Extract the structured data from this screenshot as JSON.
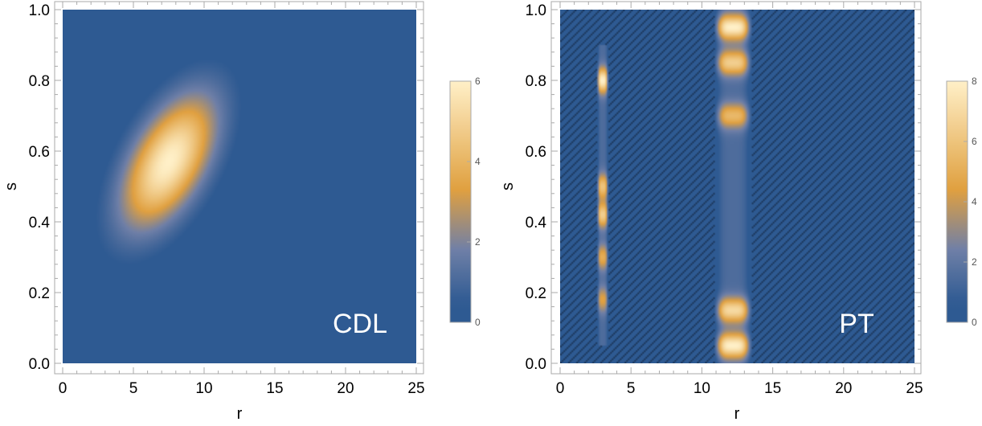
{
  "colors": {
    "low": "#2e5a92",
    "mid": "#6f7fa7",
    "warm": "#e0a040",
    "high": "#fff0c8",
    "hatch": "#0d1a2c",
    "frame": "#aaaaaa",
    "text": "#000000"
  },
  "chart_data": [
    {
      "type": "heatmap",
      "title": "",
      "xlabel": "r",
      "ylabel": "s",
      "xlim": [
        0,
        25
      ],
      "ylim": [
        0,
        1
      ],
      "xticks": [
        "0",
        "5",
        "10",
        "15",
        "20",
        "25"
      ],
      "yticks": [
        "0.0",
        "0.2",
        "0.4",
        "0.6",
        "0.8",
        "1.0"
      ],
      "annotation": "CDL",
      "colorbar": {
        "min": 0,
        "max": 6,
        "ticks": [
          "0",
          "2",
          "4",
          "6"
        ]
      },
      "blobs": [
        {
          "r": 7.5,
          "s": 0.57,
          "sigma_r": 2.3,
          "sigma_s": 0.13,
          "corr": 0.55,
          "peak": 6.0
        }
      ]
    },
    {
      "type": "heatmap",
      "title": "",
      "xlabel": "r",
      "ylabel": "s",
      "xlim": [
        0,
        25
      ],
      "ylim": [
        0,
        1
      ],
      "xticks": [
        "0",
        "5",
        "10",
        "15",
        "20",
        "25"
      ],
      "yticks": [
        "0.0",
        "0.2",
        "0.4",
        "0.6",
        "0.8",
        "1.0"
      ],
      "annotation": "PT",
      "colorbar": {
        "min": 0,
        "max": 8,
        "ticks": [
          "0",
          "2",
          "4",
          "6",
          "8"
        ]
      },
      "bands": [
        {
          "r_center": 3.0,
          "width": 0.8,
          "s_range": [
            0.05,
            0.9
          ],
          "base": 1.5,
          "hot": [
            {
              "s": 0.8,
              "v": 6.5
            },
            {
              "s": 0.42,
              "v": 5.0
            },
            {
              "s": 0.5,
              "v": 4.5
            },
            {
              "s": 0.3,
              "v": 3.5
            },
            {
              "s": 0.18,
              "v": 3.0
            }
          ]
        },
        {
          "r_center": 12.2,
          "width": 2.6,
          "s_range": [
            0.0,
            1.0
          ],
          "base": 1.5,
          "hot": [
            {
              "s": 0.95,
              "v": 6.5
            },
            {
              "s": 0.85,
              "v": 5.0
            },
            {
              "s": 0.7,
              "v": 4.0
            },
            {
              "s": 0.15,
              "v": 5.5
            },
            {
              "s": 0.05,
              "v": 6.5
            }
          ]
        }
      ]
    }
  ]
}
